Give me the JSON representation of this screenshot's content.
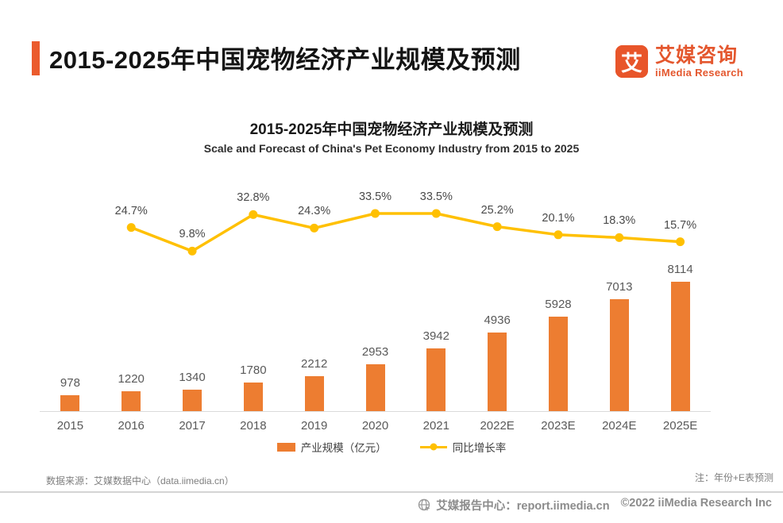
{
  "colors": {
    "accent": "#EB5B2D",
    "bar": "#ED7D31",
    "line": "#FFC000",
    "title_text": "#1A1A1A",
    "label_gray": "#595959",
    "footer_gray": "#8C8C8C"
  },
  "header": {
    "title": "2015-2025年中国宠物经济产业规模及预测"
  },
  "logo": {
    "mark": "艾",
    "name_cn": "艾媒咨询",
    "name_en": "iiMedia Research"
  },
  "chart_data": {
    "type": "combo",
    "title": "2015-2025年中国宠物经济产业规模及预测",
    "subtitle": "Scale and Forecast of China's Pet Economy Industry from 2015 to 2025",
    "categories": [
      "2015",
      "2016",
      "2017",
      "2018",
      "2019",
      "2020",
      "2021",
      "2022E",
      "2023E",
      "2024E",
      "2025E"
    ],
    "series": [
      {
        "name": "产业规模（亿元）",
        "type": "bar",
        "color": "#ED7D31",
        "values": [
          978,
          1220,
          1340,
          1780,
          2212,
          2953,
          3942,
          4936,
          5928,
          7013,
          8114
        ]
      },
      {
        "name": "同比增长率",
        "type": "line",
        "color": "#FFC000",
        "unit": "%",
        "values": [
          null,
          24.7,
          9.8,
          32.8,
          24.3,
          33.5,
          33.5,
          25.2,
          20.1,
          18.3,
          15.7
        ]
      }
    ],
    "legend_position": "bottom",
    "grid": false,
    "value_labels_shown": true
  },
  "legend": {
    "bar_label": "产业规模（亿元）",
    "line_label": "同比增长率"
  },
  "footer": {
    "source": "数据来源：艾媒数据中心（data.iimedia.cn）",
    "note": "注：年份+E表预测",
    "report_center": "艾媒报告中心：report.iimedia.cn",
    "copyright": "©2022  iiMedia Research  Inc"
  }
}
